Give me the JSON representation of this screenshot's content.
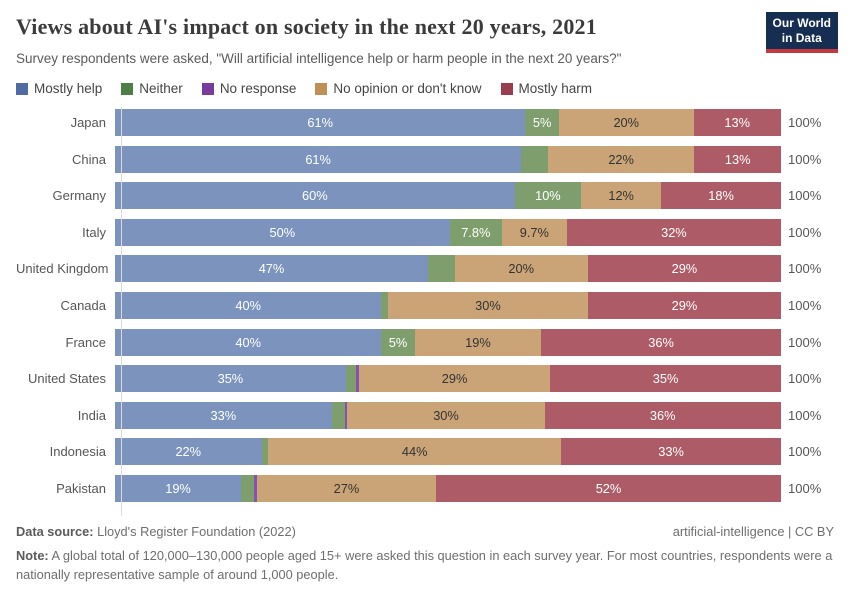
{
  "header": {
    "title": "Views about AI's impact on society in the next 20 years, 2021",
    "subtitle": "Survey respondents were asked, \"Will artificial intelligence help or harm people in the next 20 years?\"",
    "logo": {
      "line1": "Our World",
      "line2": "in Data",
      "bg_color": "#152e51",
      "accent_color": "#c4393f"
    }
  },
  "legend": {
    "items": [
      {
        "label": "Mostly help",
        "color": "#4f6da3"
      },
      {
        "label": "Neither",
        "color": "#4e8045"
      },
      {
        "label": "No response",
        "color": "#7a3b9e"
      },
      {
        "label": "No opinion or don't know",
        "color": "#bf8f55"
      },
      {
        "label": "Mostly harm",
        "color": "#9a3e4e"
      }
    ]
  },
  "chart_data": {
    "type": "bar",
    "stacked": true,
    "orientation": "horizontal",
    "unit": "%",
    "xlim": [
      0,
      100
    ],
    "categories": [
      "Mostly help",
      "Neither",
      "No response",
      "No opinion or don't know",
      "Mostly harm"
    ],
    "bar_colors": [
      "#7b93bd",
      "#7f9e6d",
      "#8553ae",
      "#caa477",
      "#ae5b68"
    ],
    "bar_text_colors": [
      "#ffffff",
      "#ffffff",
      "#ffffff",
      "#333333",
      "#ffffff"
    ],
    "total_label": "100%",
    "rows": [
      {
        "country": "Japan",
        "values": [
          61,
          5,
          0,
          20,
          13
        ],
        "labels": [
          "61%",
          "5%",
          "",
          "20%",
          "13%"
        ]
      },
      {
        "country": "China",
        "values": [
          61,
          4,
          0,
          22,
          13
        ],
        "labels": [
          "61%",
          "",
          "",
          "22%",
          "13%"
        ]
      },
      {
        "country": "Germany",
        "values": [
          60,
          10,
          0,
          12,
          18
        ],
        "labels": [
          "60%",
          "10%",
          "",
          "12%",
          "18%"
        ]
      },
      {
        "country": "Italy",
        "values": [
          50,
          7.8,
          0,
          9.7,
          32
        ],
        "labels": [
          "50%",
          "7.8%",
          "",
          "9.7%",
          "32%"
        ]
      },
      {
        "country": "United Kingdom",
        "values": [
          47,
          4,
          0,
          20,
          29
        ],
        "labels": [
          "47%",
          "",
          "",
          "20%",
          "29%"
        ]
      },
      {
        "country": "Canada",
        "values": [
          40,
          1,
          0,
          30,
          29
        ],
        "labels": [
          "40%",
          "",
          "",
          "30%",
          "29%"
        ]
      },
      {
        "country": "France",
        "values": [
          40,
          5,
          0,
          19,
          36
        ],
        "labels": [
          "40%",
          "5%",
          "",
          "19%",
          "36%"
        ]
      },
      {
        "country": "United States",
        "values": [
          35,
          1.5,
          0.5,
          29,
          35
        ],
        "labels": [
          "35%",
          "",
          "",
          "29%",
          "35%"
        ]
      },
      {
        "country": "India",
        "values": [
          33,
          2,
          0.4,
          30,
          36
        ],
        "labels": [
          "33%",
          "",
          "",
          "30%",
          "36%"
        ]
      },
      {
        "country": "Indonesia",
        "values": [
          22,
          1,
          0,
          44,
          33
        ],
        "labels": [
          "22%",
          "",
          "",
          "44%",
          "33%"
        ]
      },
      {
        "country": "Pakistan",
        "values": [
          19,
          2,
          0.4,
          27,
          52
        ],
        "labels": [
          "19%",
          "",
          "",
          "27%",
          "52%"
        ]
      }
    ]
  },
  "footer": {
    "source_label": "Data source:",
    "source_value": " Lloyd's Register Foundation (2022)",
    "rights": "artificial-intelligence | CC BY",
    "note_label": "Note:",
    "note_value": " A global total of 120,000–130,000 people aged 15+ were asked this question in each survey year. For most countries, respondents were a nationally representative sample of around 1,000 people."
  }
}
